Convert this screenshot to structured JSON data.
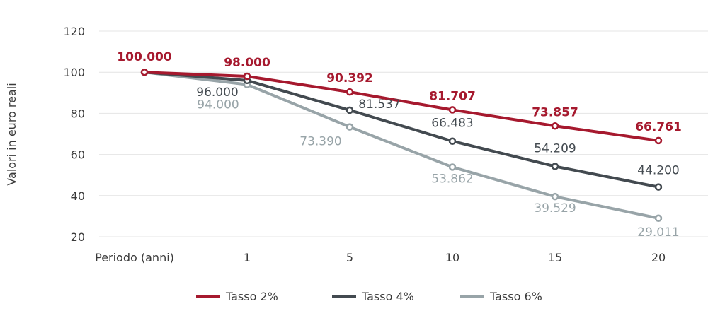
{
  "chart_data": {
    "type": "line",
    "categories": [
      "Periodo (anni)",
      "1",
      "5",
      "10",
      "15",
      "20"
    ],
    "ylabel": "Valori in euro reali",
    "ylim": [
      20,
      120
    ],
    "yticks": [
      20,
      40,
      60,
      80,
      100,
      120
    ],
    "ytick_labels": [
      "20",
      "40",
      "60",
      "80",
      "100",
      "120"
    ],
    "grid": true,
    "legend_position": "bottom-center",
    "series": [
      {
        "name": "Tasso 2%",
        "color": "#a6192e",
        "values": [
          100,
          98,
          90.392,
          81.707,
          73.857,
          66.761
        ],
        "labels": [
          "100.000",
          "98.000",
          "90.392",
          "81.707",
          "73.857",
          "66.761"
        ]
      },
      {
        "name": "Tasso 4%",
        "color": "#434a50",
        "values": [
          100,
          96,
          81.537,
          66.483,
          54.209,
          44.2
        ],
        "labels": [
          "",
          "96.000",
          "81.537",
          "66.483",
          "54.209",
          "44.200"
        ]
      },
      {
        "name": "Tasso 6%",
        "color": "#98a4a8",
        "values": [
          100,
          94,
          73.39,
          53.862,
          39.529,
          29.011
        ],
        "labels": [
          "",
          "94.000",
          "73.390",
          "53.862",
          "39.529",
          "29.011"
        ]
      }
    ]
  }
}
